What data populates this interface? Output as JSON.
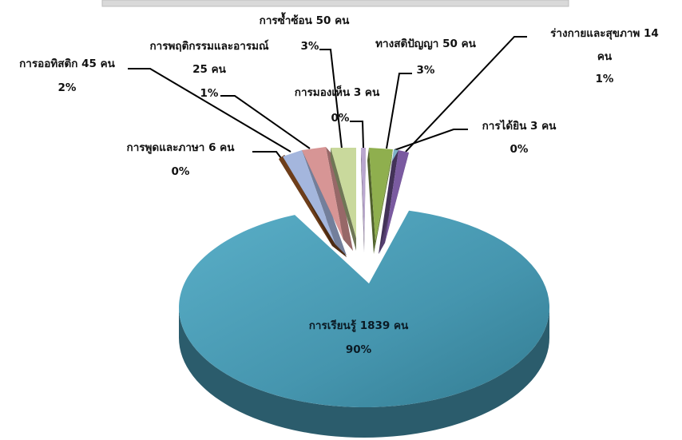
{
  "chart_data": {
    "type": "pie",
    "title": "",
    "style": "3d-exploded",
    "legend": "none",
    "slices": [
      {
        "label": "การเรียนรู้ 1839 คน",
        "value": 90,
        "display_pct": "90%",
        "color": "#4595AE"
      },
      {
        "label": "การพูดและภาษา 6 คน",
        "value": 0.3,
        "display_pct": "0%",
        "color": "#6E3E1A"
      },
      {
        "label": "การออทิสติก 45 คน",
        "value": 2,
        "display_pct": "2%",
        "color": "#A4B6DD"
      },
      {
        "label": "การพฤติกรรมและอารมณ์ 25 คน",
        "value": 1,
        "display_pct": "1%",
        "color": "#D79595"
      },
      {
        "label": "การซ้ำซ้อน 50 คน",
        "value": 3,
        "display_pct": "3%",
        "color": "#C9D99C"
      },
      {
        "label": "การมองเห็น 3 คน",
        "value": 0.2,
        "display_pct": "0%",
        "color": "#B9A6CF"
      },
      {
        "label": "ทางสติปัญญา 50 คน",
        "value": 3,
        "display_pct": "3%",
        "color": "#8FAF4E"
      },
      {
        "label": "การได้ยิน 3 คน",
        "value": 0.2,
        "display_pct": "0%",
        "color": "#7FB2C7"
      },
      {
        "label": "ร่างกายและสุขภาพ 14 คน",
        "value": 1,
        "display_pct": "1%",
        "color": "#7A5AA0"
      }
    ]
  }
}
